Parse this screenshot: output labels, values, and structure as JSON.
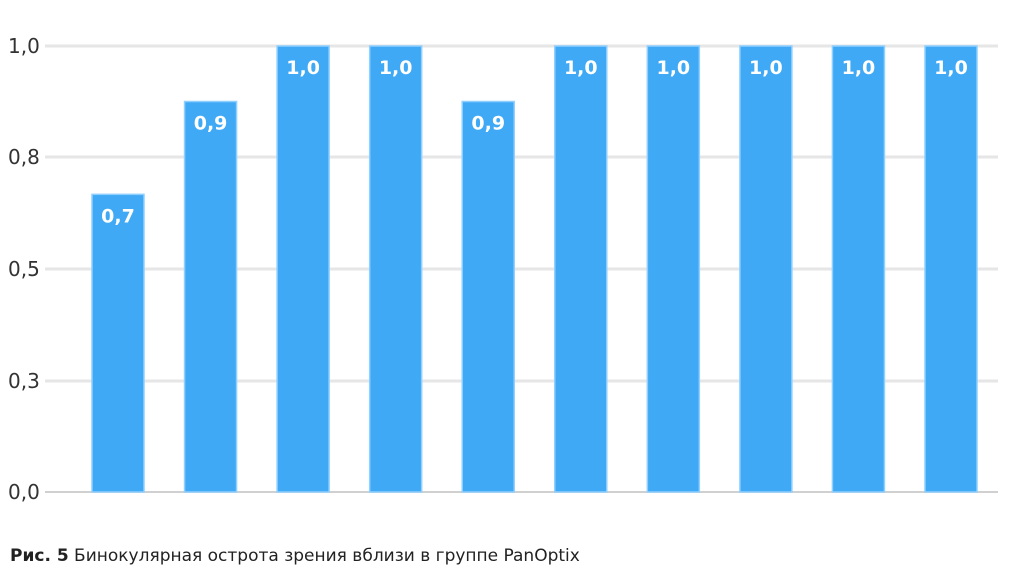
{
  "chart_data": {
    "type": "bar",
    "categories": [
      "",
      "",
      "",
      "",
      "",
      "",
      "",
      "",
      "",
      ""
    ],
    "values": [
      0.7,
      0.9,
      1.0,
      1.0,
      0.9,
      1.0,
      1.0,
      1.0,
      1.0,
      1.0
    ],
    "data_labels": [
      "0,7",
      "0,9",
      "1,0",
      "1,0",
      "0,9",
      "1,0",
      "1,0",
      "1,0",
      "1,0",
      "1,0"
    ],
    "y_ticks": [
      0.0,
      0.3,
      0.5,
      0.8,
      1.0
    ],
    "y_tick_labels": [
      "0,0",
      "0,3",
      "0,5",
      "0,8",
      "1,0"
    ],
    "ylim": [
      0,
      1.0
    ],
    "grid": true,
    "legend": "none",
    "bar_color": "#3fa9f5",
    "grid_color": "#e6e6e6"
  },
  "caption": {
    "label": "Рис. 5",
    "text": " Бинокулярная острота зрения вблизи в группе PanOptix"
  }
}
